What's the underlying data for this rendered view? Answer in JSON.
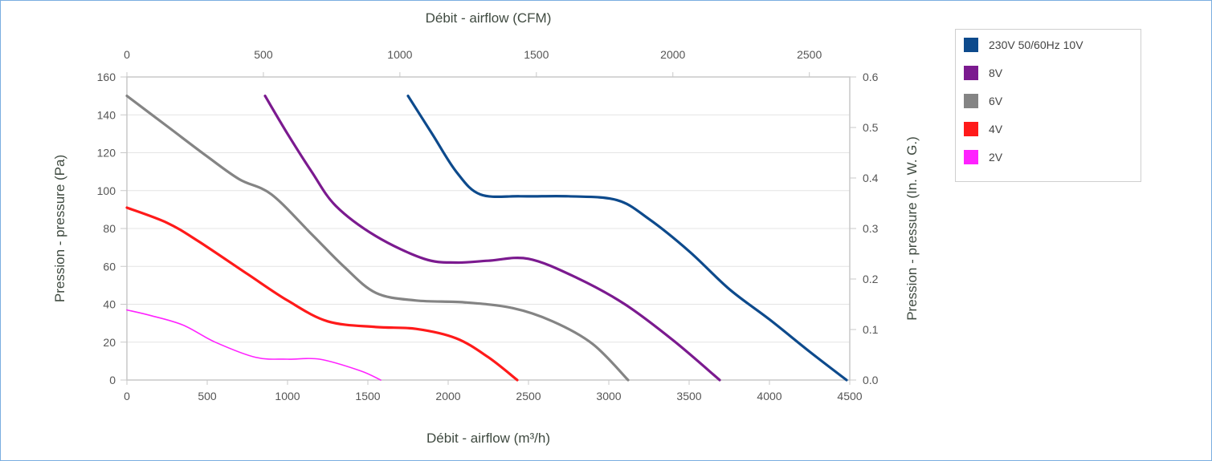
{
  "chart_data": {
    "type": "line",
    "x_axis_bottom": {
      "title": "Débit - airflow (m³/h)",
      "range": [
        0,
        4500
      ],
      "ticks": [
        "0",
        "500",
        "1000",
        "1500",
        "2000",
        "2500",
        "3000",
        "3500",
        "4000",
        "4500"
      ]
    },
    "x_axis_top": {
      "title": "Débit - airflow (CFM)",
      "range": [
        0,
        2648
      ],
      "ticks": [
        "0",
        "500",
        "1000",
        "1500",
        "2000",
        "2500"
      ]
    },
    "y_axis_left": {
      "title": "Pression - pressure (Pa)",
      "range": [
        0,
        160
      ],
      "ticks": [
        "0",
        "20",
        "40",
        "60",
        "80",
        "100",
        "120",
        "140",
        "160"
      ]
    },
    "y_axis_right": {
      "title": "Pression - pressure (In. W. G.)",
      "range": [
        0,
        0.6
      ],
      "ticks": [
        "0.0",
        "0.1",
        "0.2",
        "0.3",
        "0.4",
        "0.5",
        "0.6"
      ]
    },
    "grid": true,
    "legend_position": "top-right",
    "series": [
      {
        "name": "230V 50/60Hz 10V",
        "color": "#0d4a8c",
        "points": [
          [
            1750,
            150
          ],
          [
            1900,
            130
          ],
          [
            2050,
            110
          ],
          [
            2200,
            98
          ],
          [
            2450,
            97
          ],
          [
            2750,
            97
          ],
          [
            3050,
            95
          ],
          [
            3250,
            85
          ],
          [
            3500,
            68
          ],
          [
            3750,
            48
          ],
          [
            4000,
            32
          ],
          [
            4250,
            15
          ],
          [
            4480,
            0
          ]
        ]
      },
      {
        "name": "8V",
        "color": "#7b1a8f",
        "points": [
          [
            860,
            150
          ],
          [
            1000,
            130
          ],
          [
            1150,
            110
          ],
          [
            1300,
            92
          ],
          [
            1550,
            76
          ],
          [
            1850,
            64
          ],
          [
            2050,
            62
          ],
          [
            2250,
            63
          ],
          [
            2500,
            64
          ],
          [
            2800,
            54
          ],
          [
            3100,
            40
          ],
          [
            3400,
            21
          ],
          [
            3690,
            0
          ]
        ]
      },
      {
        "name": "6V",
        "color": "#848484",
        "points": [
          [
            0,
            150
          ],
          [
            250,
            134
          ],
          [
            500,
            118
          ],
          [
            700,
            106
          ],
          [
            900,
            98
          ],
          [
            1150,
            77
          ],
          [
            1350,
            60
          ],
          [
            1550,
            46
          ],
          [
            1800,
            42
          ],
          [
            2100,
            41
          ],
          [
            2400,
            38
          ],
          [
            2650,
            31
          ],
          [
            2900,
            19
          ],
          [
            3120,
            0
          ]
        ]
      },
      {
        "name": "4V",
        "color": "#ff1a1a",
        "points": [
          [
            0,
            91
          ],
          [
            250,
            83
          ],
          [
            450,
            73
          ],
          [
            750,
            56
          ],
          [
            1000,
            42
          ],
          [
            1250,
            31
          ],
          [
            1550,
            28
          ],
          [
            1800,
            27
          ],
          [
            2050,
            22
          ],
          [
            2250,
            12
          ],
          [
            2430,
            0
          ]
        ]
      },
      {
        "name": "2V",
        "color": "#ff22ff",
        "points": [
          [
            0,
            37
          ],
          [
            150,
            34
          ],
          [
            350,
            29
          ],
          [
            550,
            20
          ],
          [
            800,
            12
          ],
          [
            1000,
            11
          ],
          [
            1200,
            11
          ],
          [
            1450,
            5
          ],
          [
            1580,
            0
          ]
        ]
      }
    ]
  }
}
